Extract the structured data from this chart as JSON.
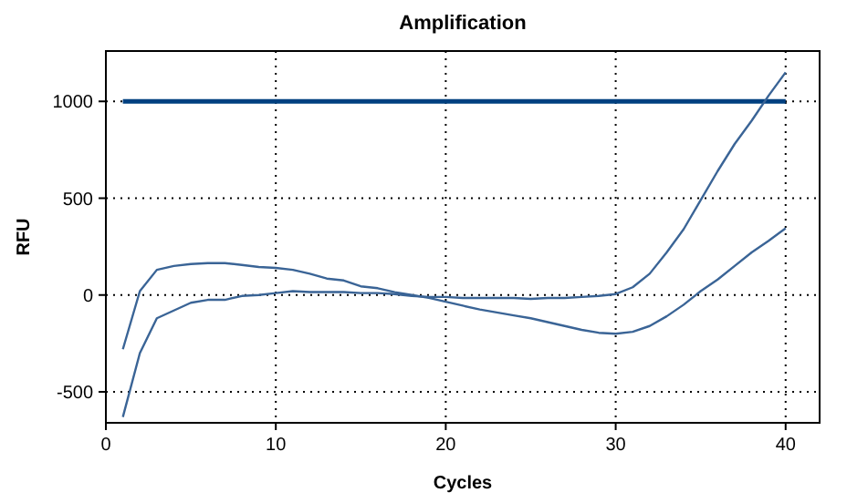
{
  "chart_data": {
    "type": "line",
    "title": "Amplification",
    "xlabel": "Cycles",
    "ylabel": "RFU",
    "x": [
      1,
      2,
      3,
      4,
      5,
      6,
      7,
      8,
      9,
      10,
      11,
      12,
      13,
      14,
      15,
      16,
      17,
      18,
      19,
      20,
      21,
      22,
      23,
      24,
      25,
      26,
      27,
      28,
      29,
      30,
      31,
      32,
      33,
      34,
      35,
      36,
      37,
      38,
      39,
      40
    ],
    "series": [
      {
        "color": "#3a6496",
        "values": [
          -280,
          20,
          130,
          150,
          160,
          165,
          165,
          155,
          145,
          140,
          130,
          110,
          85,
          75,
          45,
          35,
          15,
          0,
          -15,
          -35,
          -55,
          -75,
          -90,
          -105,
          -120,
          -140,
          -160,
          -180,
          -195,
          -200,
          -190,
          -160,
          -110,
          -50,
          20,
          80,
          150,
          220,
          280,
          345
        ]
      },
      {
        "color": "#3a6496",
        "values": [
          -630,
          -300,
          -120,
          -80,
          -40,
          -25,
          -25,
          -5,
          0,
          10,
          20,
          15,
          15,
          15,
          10,
          10,
          5,
          -5,
          -10,
          -10,
          -15,
          -15,
          -15,
          -15,
          -20,
          -15,
          -15,
          -10,
          -5,
          5,
          40,
          110,
          220,
          340,
          490,
          640,
          780,
          900,
          1030,
          1150
        ]
      }
    ],
    "ref_lines": [
      {
        "axis": "y",
        "value": 1000,
        "color": "#004080"
      }
    ],
    "xlim": [
      0,
      42
    ],
    "xticks": [
      0,
      10,
      20,
      30,
      40
    ],
    "ylim": [
      -660,
      1260
    ],
    "yticks": [
      -500,
      0,
      500,
      1000
    ],
    "grid": true,
    "line_style": "solid",
    "marker": "none"
  }
}
